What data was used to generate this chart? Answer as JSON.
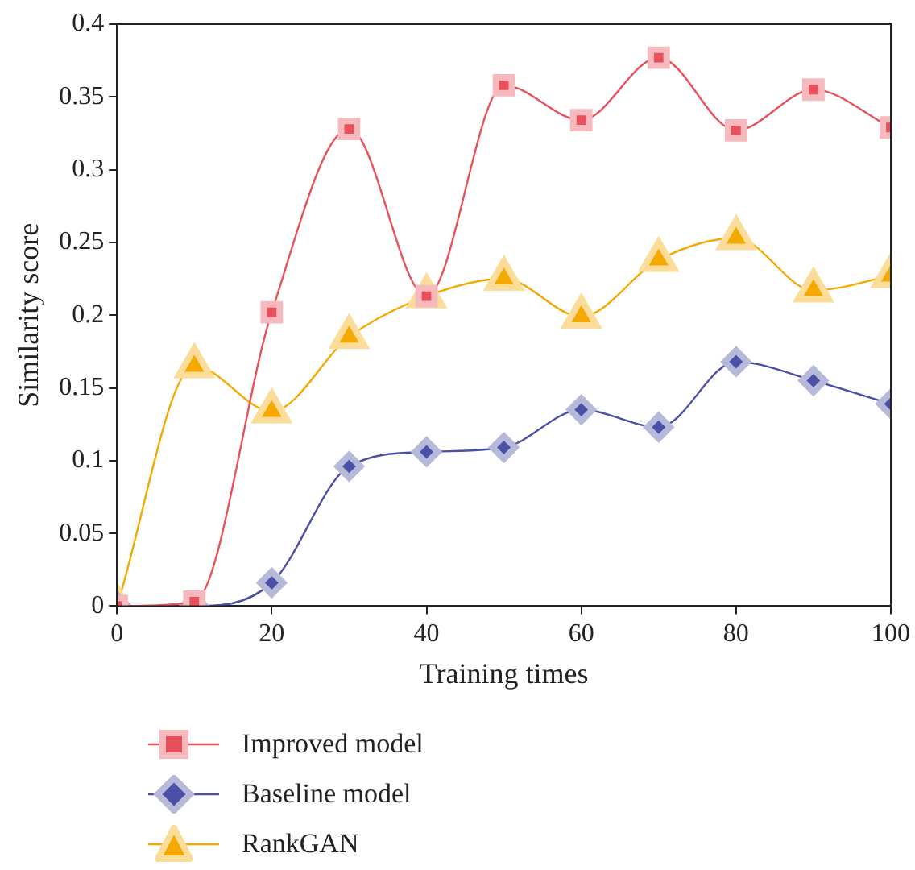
{
  "chart_data": {
    "type": "line",
    "xlabel": "Training times",
    "ylabel": "Similarity score",
    "x": [
      0,
      10,
      20,
      30,
      40,
      50,
      60,
      70,
      80,
      90,
      100
    ],
    "xlim": [
      0,
      100
    ],
    "xticks": [
      0,
      20,
      40,
      60,
      80,
      100
    ],
    "ylim": [
      0,
      0.4
    ],
    "yticks": [
      0,
      0.05,
      0.1,
      0.15,
      0.2,
      0.25,
      0.3,
      0.35,
      0.4
    ],
    "grid": false,
    "legend": "bottom left",
    "series": [
      {
        "name": "Improved model",
        "color": "#e8505b",
        "marker": "square",
        "values": [
          0,
          0.003,
          0.202,
          0.328,
          0.213,
          0.358,
          0.334,
          0.377,
          0.327,
          0.355,
          0.329
        ]
      },
      {
        "name": "Baseline model",
        "color": "#4b4fa6",
        "marker": "diamond",
        "values": [
          0,
          0,
          0.016,
          0.096,
          0.106,
          0.109,
          0.135,
          0.123,
          0.168,
          0.155,
          0.139
        ]
      },
      {
        "name": "RankGAN",
        "color": "#f5a800",
        "marker": "triangle",
        "values": [
          0,
          0.165,
          0.134,
          0.185,
          0.213,
          0.225,
          0.199,
          0.238,
          0.253,
          0.217,
          0.227
        ]
      }
    ]
  }
}
